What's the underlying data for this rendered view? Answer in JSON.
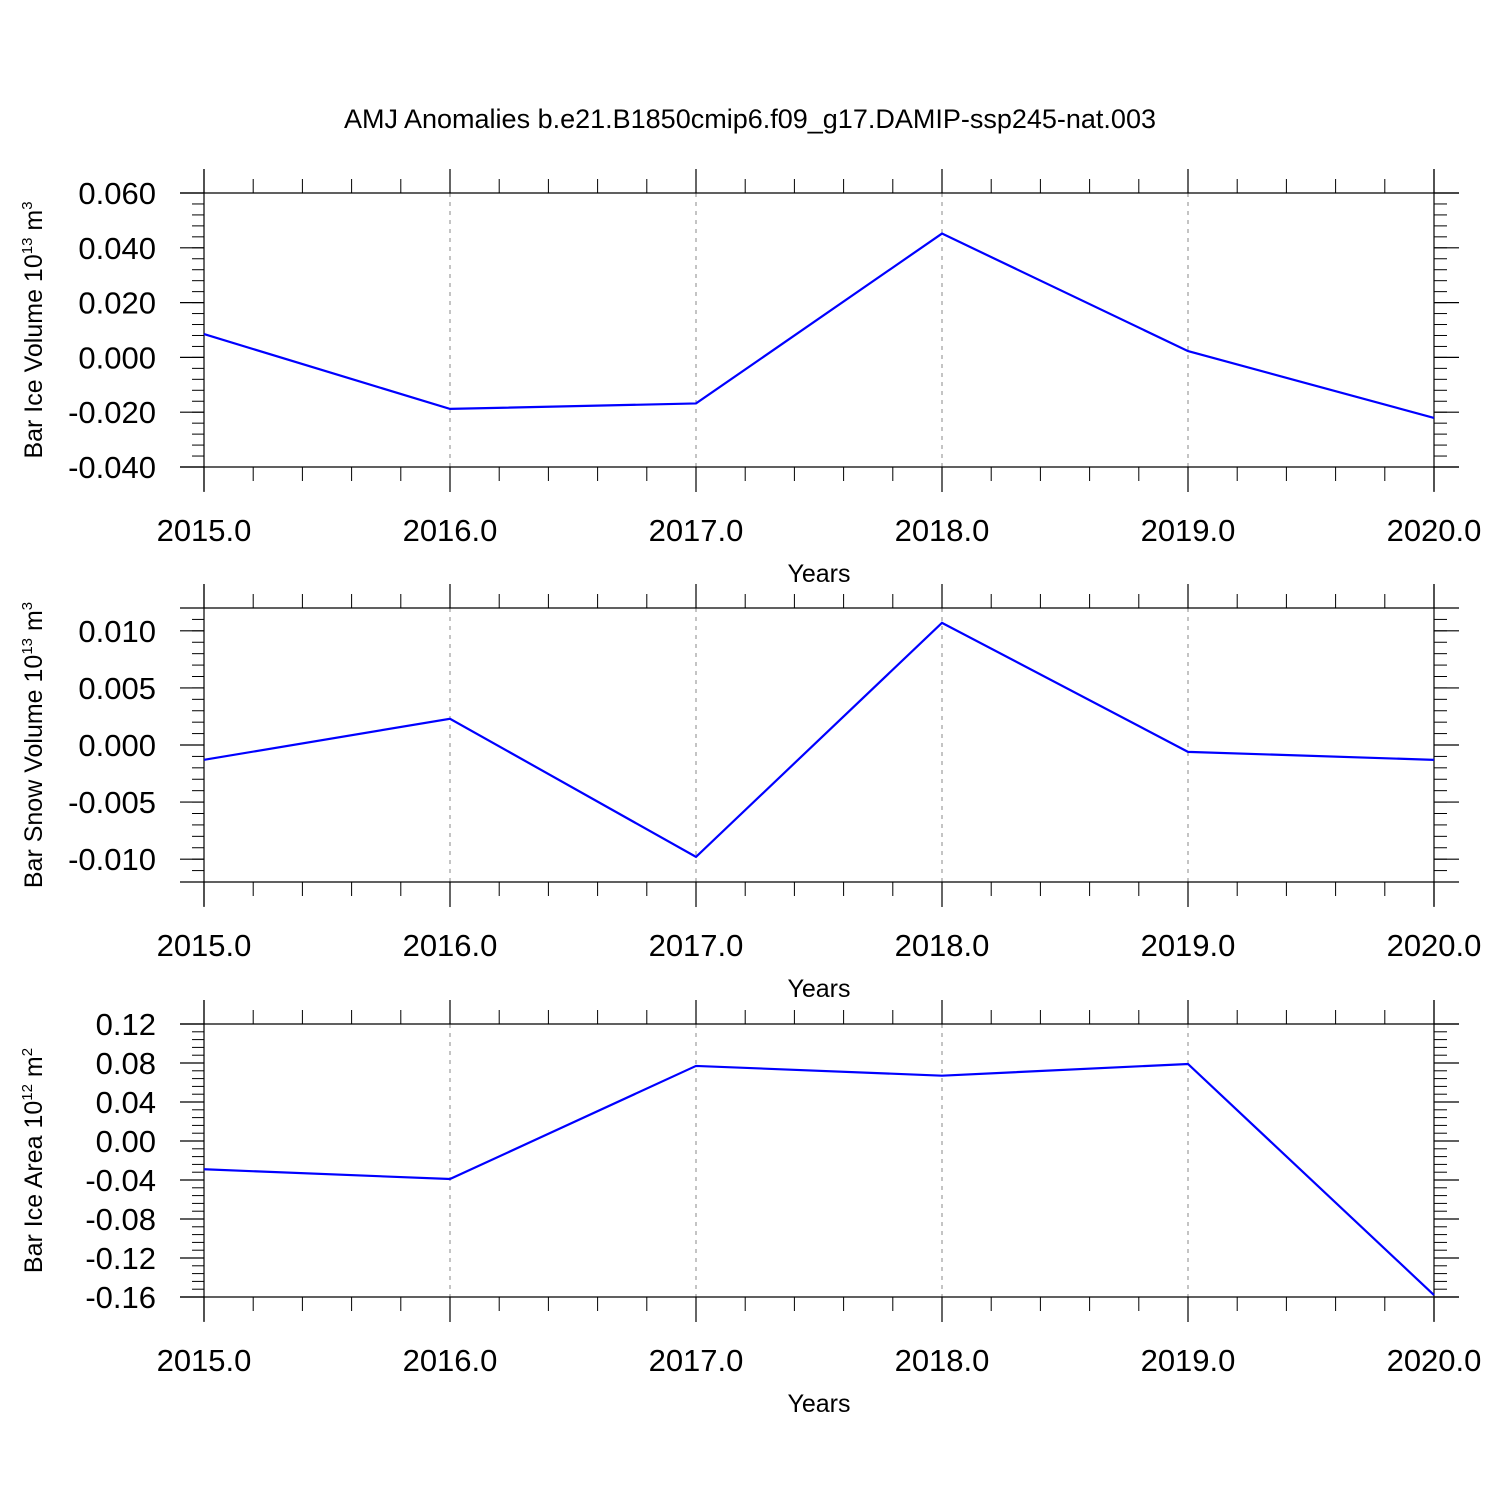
{
  "title": "AMJ Anomalies b.e21.B1850cmip6.f09_g17.DAMIP-ssp245-nat.003",
  "line_color": "#0000ff",
  "chart_data": [
    {
      "type": "line",
      "xlabel": "Years",
      "ylabel": {
        "prefix": "Bar Ice Volume 10",
        "exp": "13",
        "unit": " m",
        "unit_exp": "3"
      },
      "x": [
        2015,
        2016,
        2017,
        2018,
        2019,
        2020
      ],
      "values": [
        0.0085,
        -0.0188,
        -0.0168,
        0.0452,
        0.0023,
        -0.0221
      ],
      "xlim": [
        2015,
        2020
      ],
      "ylim": [
        -0.04,
        0.06
      ],
      "x_ticks": [
        2015,
        2016,
        2017,
        2018,
        2019,
        2020
      ],
      "x_tick_labels": [
        "2015.0",
        "2016.0",
        "2017.0",
        "2018.0",
        "2019.0",
        "2020.0"
      ],
      "y_ticks": [
        -0.04,
        -0.02,
        0.0,
        0.02,
        0.04,
        0.06
      ],
      "y_tick_labels": [
        "-0.040",
        "-0.020",
        "0.000",
        "0.020",
        "0.040",
        "0.060"
      ],
      "y_minor_step": 0.004,
      "grid": "vertical dashed at major x ticks"
    },
    {
      "type": "line",
      "xlabel": "Years",
      "ylabel": {
        "prefix": "Bar Snow Volume 10",
        "exp": "13",
        "unit": " m",
        "unit_exp": "3"
      },
      "x": [
        2015,
        2016,
        2017,
        2018,
        2019,
        2020
      ],
      "values": [
        -0.0013,
        0.0023,
        -0.0098,
        0.0107,
        -0.0006,
        -0.0013
      ],
      "xlim": [
        2015,
        2020
      ],
      "ylim": [
        -0.012,
        0.012
      ],
      "x_ticks": [
        2015,
        2016,
        2017,
        2018,
        2019,
        2020
      ],
      "x_tick_labels": [
        "2015.0",
        "2016.0",
        "2017.0",
        "2018.0",
        "2019.0",
        "2020.0"
      ],
      "y_ticks": [
        -0.01,
        -0.005,
        0.0,
        0.005,
        0.01
      ],
      "y_tick_labels": [
        "-0.010",
        "-0.005",
        "0.000",
        "0.005",
        "0.010"
      ],
      "y_minor_step": 0.001,
      "grid": "vertical dashed at major x ticks"
    },
    {
      "type": "line",
      "xlabel": "Years",
      "ylabel": {
        "prefix": "Bar Ice Area 10",
        "exp": "12",
        "unit": " m",
        "unit_exp": "2"
      },
      "x": [
        2015,
        2016,
        2017,
        2018,
        2019,
        2020
      ],
      "values": [
        -0.029,
        -0.039,
        0.077,
        0.067,
        0.079,
        -0.158
      ],
      "xlim": [
        2015,
        2020
      ],
      "ylim": [
        -0.16,
        0.12
      ],
      "x_ticks": [
        2015,
        2016,
        2017,
        2018,
        2019,
        2020
      ],
      "x_tick_labels": [
        "2015.0",
        "2016.0",
        "2017.0",
        "2018.0",
        "2019.0",
        "2020.0"
      ],
      "y_ticks": [
        -0.16,
        -0.12,
        -0.08,
        -0.04,
        0.0,
        0.04,
        0.08,
        0.12
      ],
      "y_tick_labels": [
        "-0.16",
        "-0.12",
        "-0.08",
        "-0.04",
        "0.00",
        "0.04",
        "0.08",
        "0.12"
      ],
      "y_minor_step": 0.008,
      "grid": "vertical dashed at major x ticks"
    }
  ]
}
